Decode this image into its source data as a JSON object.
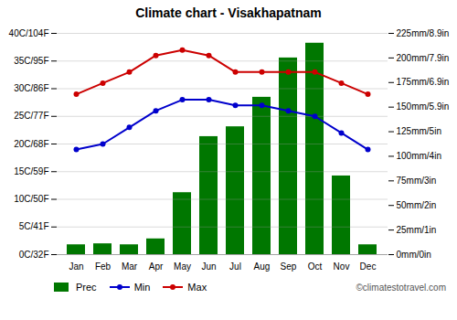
{
  "chart_data": {
    "type": "bar",
    "title": "Climate chart - Visakhapatnam",
    "categories": [
      "Jan",
      "Feb",
      "Mar",
      "Apr",
      "May",
      "Jun",
      "Jul",
      "Aug",
      "Sep",
      "Oct",
      "Nov",
      "Dec"
    ],
    "series": [
      {
        "name": "Prec",
        "type": "bar",
        "axis": "y2",
        "color": "#007700",
        "values": [
          10,
          11,
          10,
          16,
          63,
          120,
          130,
          160,
          200,
          215,
          80,
          10
        ]
      },
      {
        "name": "Min",
        "type": "line",
        "color": "#0000cc",
        "marker": "o",
        "values": [
          19,
          20,
          23,
          26,
          28,
          28,
          27,
          27,
          26,
          25,
          22,
          19
        ]
      },
      {
        "name": "Max",
        "type": "line",
        "color": "#cc0000",
        "marker": "o",
        "values": [
          29,
          31,
          33,
          36,
          37,
          36,
          33,
          33,
          33,
          33,
          31,
          29
        ]
      }
    ],
    "ylim": [
      0,
      40
    ],
    "yticks": [
      {
        "value": 0,
        "label": "0C/32F"
      },
      {
        "value": 5,
        "label": "5C/41F"
      },
      {
        "value": 10,
        "label": "10C/50F"
      },
      {
        "value": 15,
        "label": "15C/59F"
      },
      {
        "value": 20,
        "label": "20C/68F"
      },
      {
        "value": 25,
        "label": "25C/77F"
      },
      {
        "value": 30,
        "label": "30C/86F"
      },
      {
        "value": 35,
        "label": "35C/95F"
      },
      {
        "value": 40,
        "label": "40C/104F"
      }
    ],
    "y2lim": [
      0,
      225
    ],
    "y2ticks": [
      {
        "value": 0,
        "label": "0mm/0in"
      },
      {
        "value": 25,
        "label": "25mm/1in"
      },
      {
        "value": 50,
        "label": "50mm/2in"
      },
      {
        "value": 75,
        "label": "75mm/3in"
      },
      {
        "value": 100,
        "label": "100mm/4in"
      },
      {
        "value": 125,
        "label": "125mm/5in"
      },
      {
        "value": 150,
        "label": "150mm/5.9in"
      },
      {
        "value": 175,
        "label": "175mm/6.9in"
      },
      {
        "value": 200,
        "label": "200mm/7.9in"
      },
      {
        "value": 225,
        "label": "225mm/8.9in"
      }
    ],
    "grid": true,
    "legend": "lower left",
    "annotations": [
      "©climatestotravel.com"
    ]
  }
}
